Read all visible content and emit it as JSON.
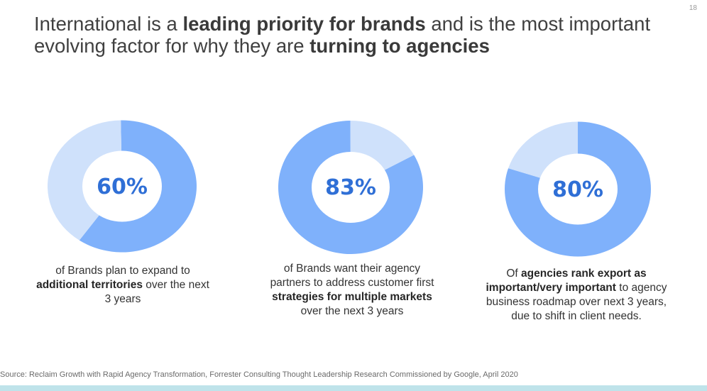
{
  "slide_number": "18",
  "headline": {
    "p1": "International is a ",
    "b1": "leading priority for brands",
    "p2": " and is the most important evolving factor for why they are ",
    "b2": "turning to agencies"
  },
  "colors": {
    "dark_segment": "#7fb1fb",
    "light_segment": "#cfe1fb",
    "percent_text": "#2f6fd6"
  },
  "chart_data": [
    {
      "type": "pie",
      "percent_label": "60%",
      "values": [
        60,
        40
      ],
      "caption": {
        "p1": "of Brands plan to expand to ",
        "b1": "additional territories",
        "p2": " over the next 3 years"
      }
    },
    {
      "type": "pie",
      "percent_label": "83%",
      "values": [
        83,
        17
      ],
      "caption": {
        "p1": "of Brands want their agency partners to address customer first ",
        "b1": "strategies for multiple markets",
        "p2": " over the next 3 years"
      }
    },
    {
      "type": "pie",
      "percent_label": "80%",
      "values": [
        80,
        20
      ],
      "caption": {
        "p1": "Of ",
        "b1": "agencies rank export as important/very important",
        "p2": " to agency business roadmap over next 3 years, due to shift in client needs."
      }
    }
  ],
  "source": "Source: Reclaim Growth with Rapid Agency Transformation, Forrester Consulting Thought Leadership Research Commissioned by Google, April 2020"
}
